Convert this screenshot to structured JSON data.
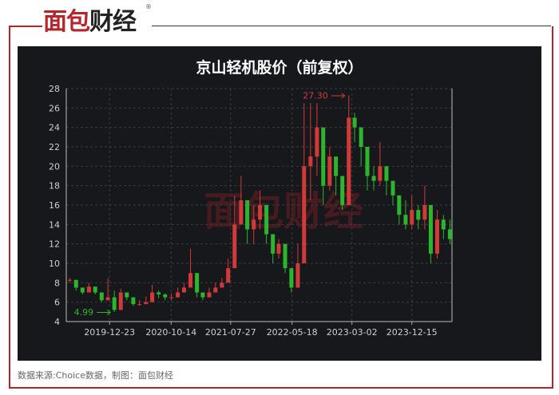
{
  "logo": {
    "text_red": "面包",
    "text_black": "财经",
    "registered": "®"
  },
  "footer": "数据来源:Choice数据，制图：面包财经",
  "watermark": "面包财经",
  "chart_data": {
    "type": "candlestick",
    "title": "京山轻机股价（前复权）",
    "ylim": [
      4,
      28
    ],
    "yticks": [
      4,
      6,
      8,
      10,
      12,
      14,
      16,
      18,
      20,
      22,
      24,
      26,
      28
    ],
    "xticks": [
      "2019-12-23",
      "2020-10-14",
      "2021-07-27",
      "2022-05-18",
      "2023-03-02",
      "2023-12-15"
    ],
    "grid": true,
    "colors": {
      "up": "#d23a3a",
      "down": "#2db52d"
    },
    "annotations": [
      {
        "label": "27.30",
        "date": "2023-02",
        "value": 27.3,
        "color": "#d23a3a"
      },
      {
        "label": "4.99",
        "date": "2020-01",
        "value": 4.99,
        "color": "#2db52d"
      }
    ],
    "dates": [
      "2019-06",
      "2019-07",
      "2019-08",
      "2019-09",
      "2019-10",
      "2019-11",
      "2019-12",
      "2020-01",
      "2020-02",
      "2020-03",
      "2020-04",
      "2020-05",
      "2020-06",
      "2020-07",
      "2020-08",
      "2020-09",
      "2020-10",
      "2020-11",
      "2020-12",
      "2021-01",
      "2021-02",
      "2021-03",
      "2021-04",
      "2021-05",
      "2021-06",
      "2021-07",
      "2021-08",
      "2021-09",
      "2021-10",
      "2021-11",
      "2021-12",
      "2022-01",
      "2022-02",
      "2022-03",
      "2022-04",
      "2022-05",
      "2022-06",
      "2022-07",
      "2022-08",
      "2022-09",
      "2022-10",
      "2022-11",
      "2022-12",
      "2023-01",
      "2023-02",
      "2023-03",
      "2023-04",
      "2023-05",
      "2023-06",
      "2023-07",
      "2023-08",
      "2023-09",
      "2023-10",
      "2023-11",
      "2023-12",
      "2024-01",
      "2024-02",
      "2024-03",
      "2024-04",
      "2024-05",
      "2024-06"
    ],
    "close": [
      8.3,
      7.5,
      7.0,
      7.6,
      7.0,
      6.2,
      6.5,
      5.2,
      7.0,
      6.5,
      5.8,
      5.8,
      6.0,
      7.0,
      6.8,
      6.5,
      6.5,
      7.0,
      7.5,
      9.0,
      7.0,
      6.5,
      7.0,
      7.5,
      8.0,
      9.5,
      14,
      16.5,
      13.5,
      14.5,
      16,
      13,
      11,
      12,
      9.5,
      7.5,
      10,
      20,
      21,
      24,
      18,
      21,
      19,
      16,
      25,
      24,
      22,
      19,
      18.5,
      20,
      18.5,
      17,
      15,
      14,
      15.5,
      14.5,
      16,
      11,
      14.5,
      13.5,
      12.5
    ],
    "high": [
      8.5,
      7.8,
      7.4,
      8.0,
      7.4,
      6.6,
      8.5,
      7.2,
      7.4,
      6.9,
      6.3,
      6.2,
      6.6,
      7.8,
      7.2,
      6.9,
      6.9,
      7.5,
      8.0,
      11.5,
      8.5,
      7.0,
      7.5,
      8.0,
      8.5,
      10.5,
      17,
      19,
      16.5,
      16,
      17.5,
      15,
      12,
      12.5,
      11,
      8.5,
      12,
      26.5,
      26.5,
      26.5,
      21,
      22,
      20.5,
      19,
      27.3,
      25.5,
      24,
      21,
      20,
      22.5,
      20,
      18.5,
      16.5,
      16.5,
      17,
      16,
      18,
      14,
      15.5,
      15,
      14.5
    ],
    "low": [
      8.0,
      7.2,
      6.8,
      7.0,
      6.8,
      6.0,
      6.2,
      4.99,
      5.8,
      6.2,
      5.6,
      5.6,
      5.8,
      6.6,
      6.4,
      6.2,
      6.2,
      6.6,
      7.2,
      7.5,
      6.5,
      6.2,
      6.6,
      7.2,
      7.6,
      9.0,
      11.5,
      14,
      12,
      12,
      13.5,
      12,
      10,
      10.5,
      9,
      7,
      7.5,
      13.5,
      16.5,
      19,
      16,
      17.5,
      17,
      15.5,
      17,
      22.5,
      20,
      17.5,
      17.5,
      18,
      17,
      16,
      14,
      13.5,
      13.5,
      13.5,
      13.5,
      10,
      10.5,
      12.5,
      12
    ]
  }
}
